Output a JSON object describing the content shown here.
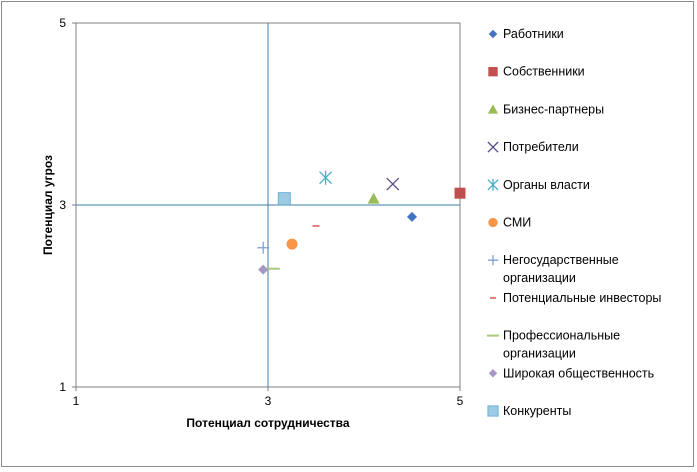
{
  "chart_data": {
    "type": "scatter",
    "xlabel": "Потенциал сотрудничества",
    "ylabel": "Потенциал угроз",
    "xlim": [
      1,
      5
    ],
    "ylim": [
      1,
      5
    ],
    "x_ticks": [
      "1",
      "3",
      "5"
    ],
    "y_ticks": [
      "1",
      "3",
      "5"
    ],
    "quadrant_lines": {
      "x": 3,
      "y": 3
    },
    "legend_position": "right",
    "series": [
      {
        "name": "Работники",
        "name_lines": [
          "Работники"
        ],
        "marker": "diamond",
        "color": "#4472C4",
        "x": 4.5,
        "y": 2.87
      },
      {
        "name": "Собственники",
        "name_lines": [
          "Собственники"
        ],
        "marker": "square",
        "color": "#C0504D",
        "x": 5.0,
        "y": 3.13
      },
      {
        "name": "Бизнес-партнеры",
        "name_lines": [
          "Бизнес-партнеры"
        ],
        "marker": "triangle",
        "color": "#9BBB59",
        "x": 4.1,
        "y": 3.07
      },
      {
        "name": "Потребители",
        "name_lines": [
          "Потребители"
        ],
        "marker": "x",
        "color": "#5F4B8B",
        "x": 4.3,
        "y": 3.23
      },
      {
        "name": "Органы власти",
        "name_lines": [
          "Органы власти"
        ],
        "marker": "asterisk",
        "color": "#4BACC6",
        "x": 3.6,
        "y": 3.3
      },
      {
        "name": "СМИ",
        "name_lines": [
          "СМИ"
        ],
        "marker": "circle",
        "color": "#F79646",
        "x": 3.25,
        "y": 2.57
      },
      {
        "name": "Негосударственные организации",
        "name_lines": [
          "Негосударственные",
          "организации"
        ],
        "marker": "plus",
        "color": "#7F9FCF",
        "x": 2.95,
        "y": 2.53
      },
      {
        "name": "Потенциальные инвесторы",
        "name_lines": [
          "Потенциальные инвесторы"
        ],
        "marker": "dash",
        "color": "#E37B7B",
        "x": 3.5,
        "y": 2.77
      },
      {
        "name": "Профессиональные организации",
        "name_lines": [
          "Профессиональные",
          "организации"
        ],
        "marker": "longdash",
        "color": "#A9C97B",
        "x": 3.05,
        "y": 2.3
      },
      {
        "name": "Широкая общественность",
        "name_lines": [
          "Широкая общественность"
        ],
        "marker": "diamond",
        "color": "#A996C6",
        "x": 2.95,
        "y": 2.29
      },
      {
        "name": "Конкуренты",
        "name_lines": [
          "Конкуренты"
        ],
        "marker": "square-light",
        "color": "#9CCCE4",
        "x": 3.17,
        "y": 3.07
      }
    ]
  }
}
